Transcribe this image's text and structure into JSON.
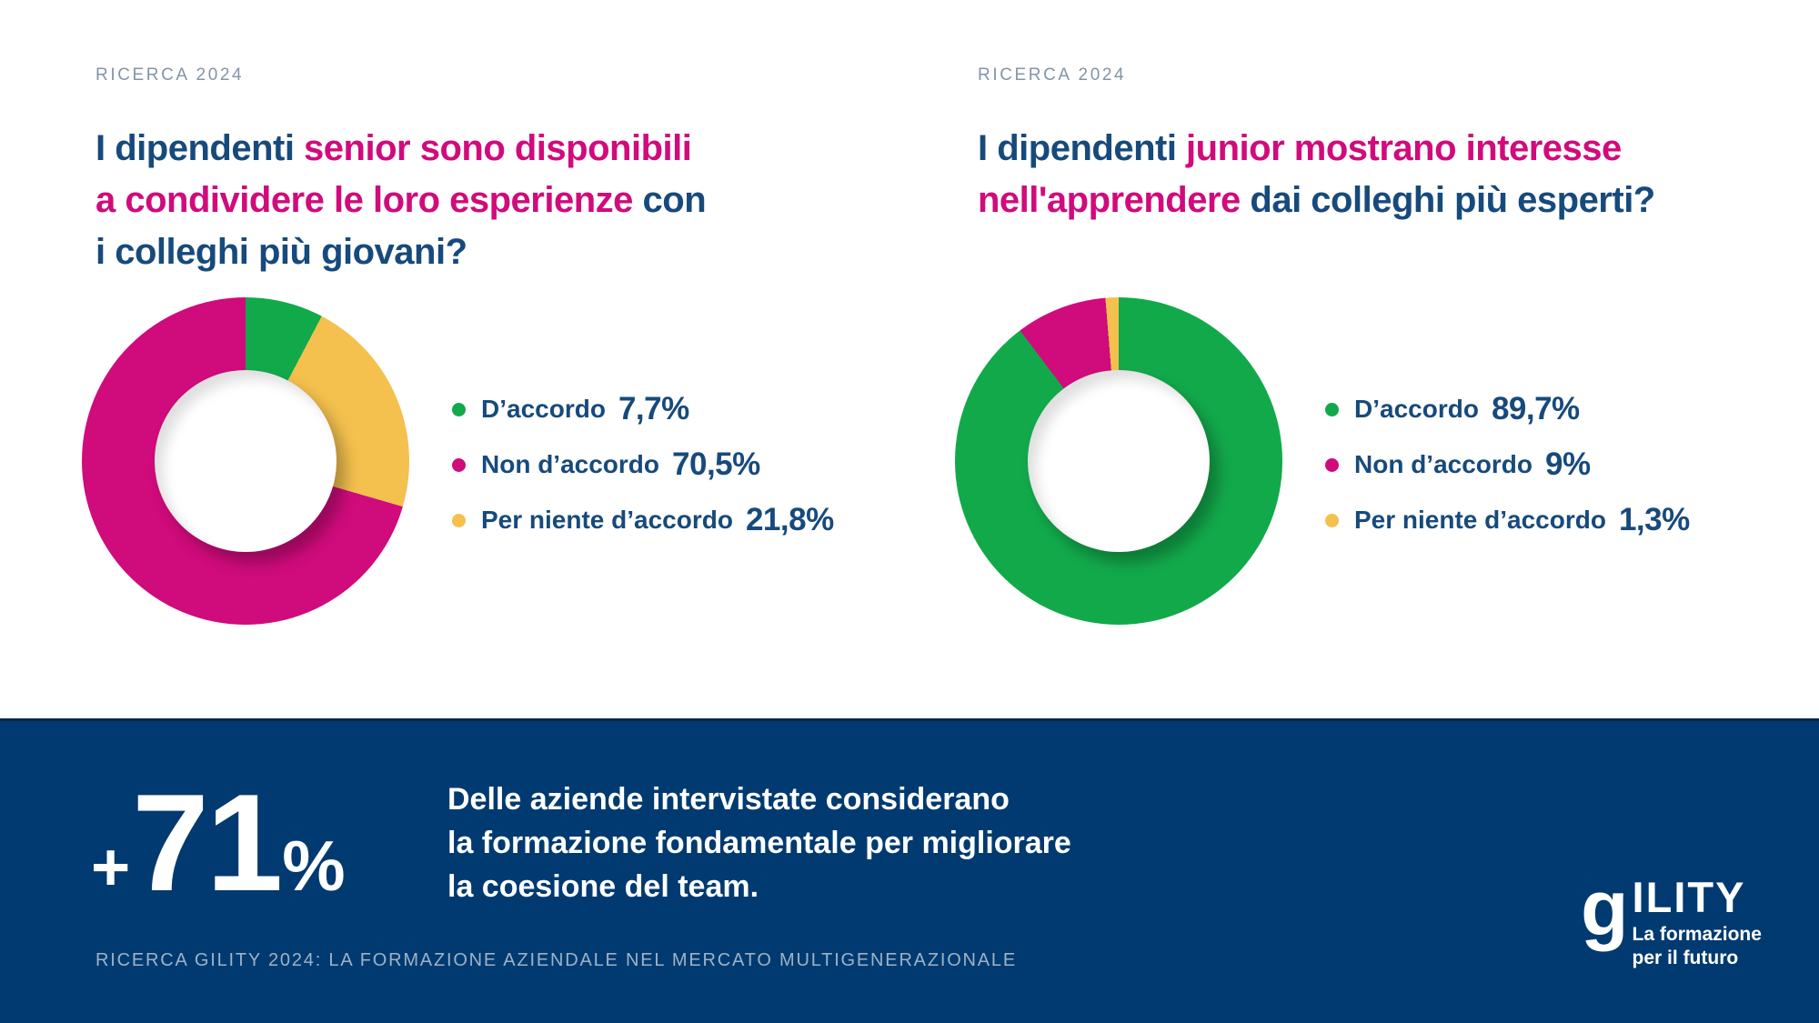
{
  "colors": {
    "navy": "#174A7C",
    "magenta": "#D00B7C",
    "green": "#12A94B",
    "yellow": "#F4C04E",
    "banner_bg": "#003A70",
    "eyebrow": "#8494A8",
    "footnote": "#9EB2C6",
    "white": "#FFFFFF"
  },
  "panels": [
    {
      "eyebrow": "RICERCA 2024",
      "title_lines": [
        [
          {
            "text": "I dipendenti ",
            "color": "navy"
          },
          {
            "text": "senior sono disponibili",
            "color": "magenta"
          }
        ],
        [
          {
            "text": "a condividere le loro esperienze ",
            "color": "magenta"
          },
          {
            "text": "con",
            "color": "navy"
          }
        ],
        [
          {
            "text": "i colleghi più giovani?",
            "color": "navy"
          }
        ]
      ]
    },
    {
      "eyebrow": "RICERCA 2024",
      "title_lines": [
        [
          {
            "text": "I dipendenti ",
            "color": "navy"
          },
          {
            "text": "junior mostrano interesse",
            "color": "magenta"
          }
        ],
        [
          {
            "text": "nell'apprendere ",
            "color": "magenta"
          },
          {
            "text": "dai colleghi più esperti?",
            "color": "navy"
          }
        ]
      ]
    }
  ],
  "chart_data": [
    {
      "type": "pie",
      "subtype": "donut",
      "title": "I dipendenti senior sono disponibili a condividere le loro esperienze con i colleghi più giovani?",
      "unit": "%",
      "legend_position": "right",
      "legend_order": [
        {
          "label": "D’accordo",
          "value": 7.7,
          "value_display": "7,7%",
          "color": "#12A94B"
        },
        {
          "label": "Non d’accordo",
          "value": 70.5,
          "value_display": "70,5%",
          "color": "#D00B7C"
        },
        {
          "label": "Per niente d’accordo",
          "value": 21.8,
          "value_display": "21,8%",
          "color": "#F4C04E"
        }
      ],
      "clockwise_from_top": [
        {
          "label": "D’accordo",
          "value": 7.7,
          "color": "#12A94B"
        },
        {
          "label": "Per niente d’accordo",
          "value": 21.8,
          "color": "#F4C04E"
        },
        {
          "label": "Non d’accordo",
          "value": 70.5,
          "color": "#D00B7C"
        }
      ]
    },
    {
      "type": "pie",
      "subtype": "donut",
      "title": "I dipendenti junior mostrano interesse nell'apprendere dai colleghi più esperti?",
      "unit": "%",
      "legend_position": "right",
      "legend_order": [
        {
          "label": "D’accordo",
          "value": 89.7,
          "value_display": "89,7%",
          "color": "#12A94B"
        },
        {
          "label": "Non d’accordo",
          "value": 9,
          "value_display": "9%",
          "color": "#D00B7C"
        },
        {
          "label": "Per niente d’accordo",
          "value": 1.3,
          "value_display": "1,3%",
          "color": "#F4C04E"
        }
      ],
      "clockwise_from_top": [
        {
          "label": "D’accordo",
          "value": 89.7,
          "color": "#12A94B"
        },
        {
          "label": "Non d’accordo",
          "value": 9,
          "color": "#D00B7C"
        },
        {
          "label": "Per niente d’accordo",
          "value": 1.3,
          "color": "#F4C04E"
        }
      ]
    }
  ],
  "banner": {
    "stat": {
      "plus": "+",
      "number": "71",
      "percent": "%"
    },
    "lines": [
      "Delle aziende intervistate considerano",
      "la formazione fondamentale per migliorare",
      "la coesione del team."
    ],
    "footnote": "RICERCA GILITY 2024: LA FORMAZIONE AZIENDALE NEL MERCATO MULTIGENERAZIONALE",
    "logo": {
      "wordmark_g": "g",
      "wordmark_rest": "ILITY",
      "tagline_lines": [
        "La formazione",
        "per il futuro"
      ]
    }
  }
}
